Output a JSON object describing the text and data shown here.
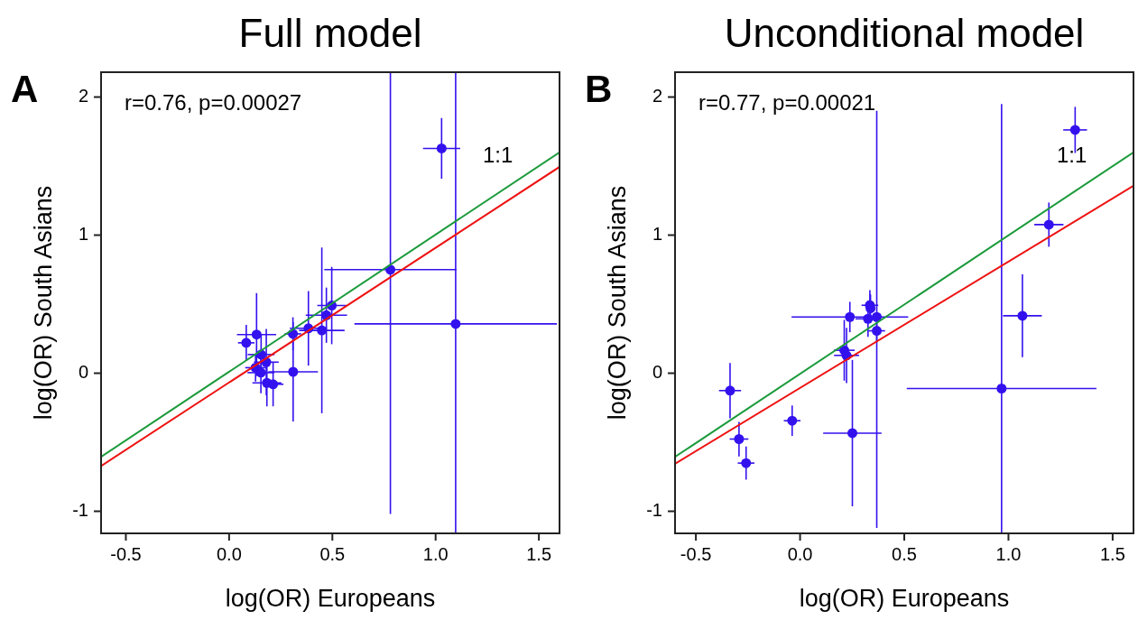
{
  "chart_data": [
    {
      "type": "scatter",
      "title": "Full model",
      "xlabel": "log(OR) Europeans",
      "ylabel": "log(OR) South Asians",
      "annotations": [
        "A",
        "r=0.76, p=0.00027",
        "1:1"
      ],
      "xlim": [
        -0.62,
        1.6
      ],
      "ylim": [
        -1.16,
        2.18
      ],
      "xticks": [
        {
          "value": -0.5,
          "label": "-0.5"
        },
        {
          "value": 0,
          "label": "0.0"
        },
        {
          "value": 0.5,
          "label": "0.5"
        },
        {
          "value": 1,
          "label": "1.0"
        },
        {
          "value": 1.5,
          "label": "1.5"
        }
      ],
      "yticks": [
        -1,
        0,
        1,
        2
      ],
      "series": [
        {
          "marker": "circle",
          "color": "#3311ee",
          "x": [
            0.083,
            0.133,
            0.155,
            0.18,
            0.128,
            0.154,
            0.183,
            0.213,
            0.309,
            0.31,
            0.384,
            0.449,
            0.471,
            0.497,
            0.781,
            1.029,
            1.097
          ],
          "values": [
            0.22,
            0.28,
            0.135,
            0.08,
            0.04,
            0.004,
            -0.07,
            -0.08,
            0.285,
            0.01,
            0.325,
            0.31,
            0.42,
            0.49,
            0.75,
            1.628,
            0.357
          ],
          "errors": [
            0.13,
            0.3,
            0.15,
            0.24,
            0.1,
            0.15,
            0.17,
            0.16,
            0.12,
            0.36,
            0.27,
            0.6,
            0.2,
            0.28,
            [
              -1.02,
              2.18
            ],
            0.22,
            [
              -1.16,
              2.18
            ]
          ],
          "xerrors": [
            0.04,
            0.095,
            0.065,
            0.06,
            0.05,
            0.065,
            0.07,
            0.05,
            0.04,
            0.12,
            0.09,
            0.11,
            0.1,
            0.07,
            0.32,
            0.09,
            0.49
          ]
        },
        {
          "type": "line",
          "marker": "none",
          "color": "#1a9a3a",
          "x": [
            -0.62,
            1.6
          ],
          "values": [
            -0.606,
            1.6
          ]
        },
        {
          "type": "line",
          "marker": "none",
          "color": "#ee1111",
          "x": [
            -0.62,
            1.6
          ],
          "values": [
            -0.672,
            1.494
          ]
        }
      ]
    },
    {
      "type": "scatter",
      "title": "Unconditional model",
      "xlabel": "log(OR) Europeans",
      "ylabel": "log(OR) South Asians",
      "annotations": [
        "B",
        "r=0.77, p=0.00021",
        "1:1"
      ],
      "xlim": [
        -0.6,
        1.6
      ],
      "ylim": [
        -1.16,
        2.18
      ],
      "xticks": [
        {
          "value": -0.5,
          "label": "-0.5"
        },
        {
          "value": 0,
          "label": "0.0"
        },
        {
          "value": 0.5,
          "label": "0.5"
        },
        {
          "value": 1,
          "label": "1.0"
        },
        {
          "value": 1.5,
          "label": "1.5"
        }
      ],
      "yticks": [
        -1,
        0,
        1,
        2
      ],
      "series": [
        {
          "marker": "circle",
          "color": "#3311ee",
          "x": [
            -0.336,
            -0.293,
            -0.259,
            -0.038,
            0.239,
            0.212,
            0.223,
            0.251,
            0.335,
            0.338,
            0.326,
            0.368,
            0.368,
            0.967,
            1.067,
            1.194,
            1.32
          ],
          "values": [
            -0.126,
            -0.477,
            -0.651,
            -0.344,
            0.407,
            0.166,
            0.129,
            -0.434,
            0.492,
            0.47,
            0.394,
            0.407,
            0.307,
            -0.111,
            0.416,
            1.076,
            1.762
          ],
          "errors": [
            0.2,
            0.125,
            0.12,
            0.11,
            0.11,
            0.22,
            0.2,
            0.53,
            0.11,
            0.1,
            0.13,
            [
              -1.12,
              1.9
            ],
            0.08,
            [
              -1.16,
              1.95
            ],
            0.3,
            0.16,
            0.167
          ],
          "xerrors": [
            0.053,
            0.045,
            0.04,
            0.04,
            0.28,
            0.05,
            0.06,
            0.14,
            0.04,
            null,
            0.06,
            0.02,
            0.04,
            0.455,
            0.093,
            0.07,
            0.057
          ]
        },
        {
          "type": "line",
          "marker": "none",
          "color": "#1a9a3a",
          "x": [
            -0.6,
            1.6
          ],
          "values": [
            -0.606,
            1.6
          ]
        },
        {
          "type": "line",
          "marker": "none",
          "color": "#ee1111",
          "x": [
            -0.6,
            1.6
          ],
          "values": [
            -0.656,
            1.357
          ]
        }
      ]
    }
  ]
}
